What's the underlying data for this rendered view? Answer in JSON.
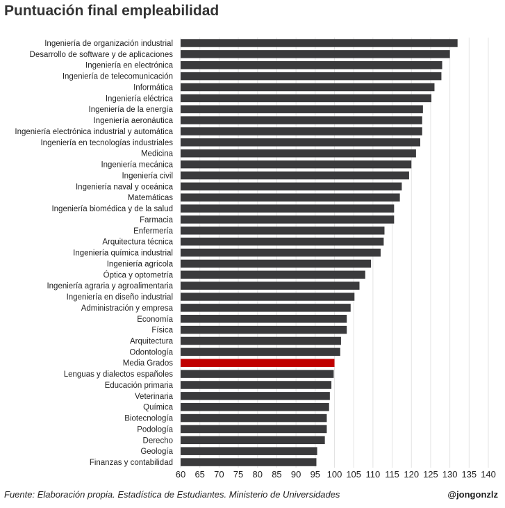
{
  "chart_data": {
    "type": "bar",
    "orientation": "horizontal",
    "title": "Puntuación final empleabilidad",
    "xlim": [
      60,
      140
    ],
    "xticks": [
      60,
      65,
      70,
      75,
      80,
      85,
      90,
      95,
      100,
      105,
      110,
      115,
      120,
      125,
      130,
      135,
      140
    ],
    "grid": true,
    "bar_color": "#3a3a3c",
    "highlight_color": "#c00000",
    "highlight_category": "Media Grados",
    "categories": [
      "Ingeniería de organización industrial",
      "Desarrollo de software y de aplicaciones",
      "Ingeniería en electrónica",
      "Ingeniería de telecomunicación",
      "Informática",
      "Ingeniería eléctrica",
      "Ingeniería de la energía",
      "Ingeniería aeronáutica",
      "Ingeniería electrónica industrial y automática",
      "Ingeniería en tecnologías industriales",
      "Medicina",
      "Ingeniería mecánica",
      "Ingeniería civil",
      "Ingeniería naval y oceánica",
      "Matemáticas",
      "Ingeniería biomédica y de la salud",
      "Farmacia",
      "Enfermería",
      "Arquitectura técnica",
      "Ingeniería química industrial",
      "Ingeniería agrícola",
      "Óptica y optometría",
      "Ingeniería agraria y agroalimentaria",
      "Ingeniería en diseño industrial",
      "Administración y empresa",
      "Economía",
      "Física",
      "Arquitectura",
      "Odontología",
      "Media Grados",
      "Lenguas y dialectos españoles",
      "Educación primaria",
      "Veterinaria",
      "Química",
      "Biotecnología",
      "Podología",
      "Derecho",
      "Geología",
      "Finanzas y contabilidad"
    ],
    "values": [
      132,
      130,
      128,
      127.8,
      126,
      125.2,
      123,
      122.8,
      122.8,
      122.3,
      121.2,
      120,
      119.4,
      117.5,
      117,
      115.5,
      115.5,
      113,
      112.8,
      112,
      109.5,
      108,
      106.5,
      105.2,
      104.2,
      103.2,
      103.2,
      101.7,
      101.5,
      100,
      99.8,
      99.2,
      98.8,
      98.6,
      98,
      98,
      97.5,
      95.5,
      95.3
    ]
  },
  "footer": {
    "source": "Fuente: Elaboración propia. Estadística de Estudiantes. Ministerio de Universidades",
    "credit": "@jongonzlz"
  }
}
